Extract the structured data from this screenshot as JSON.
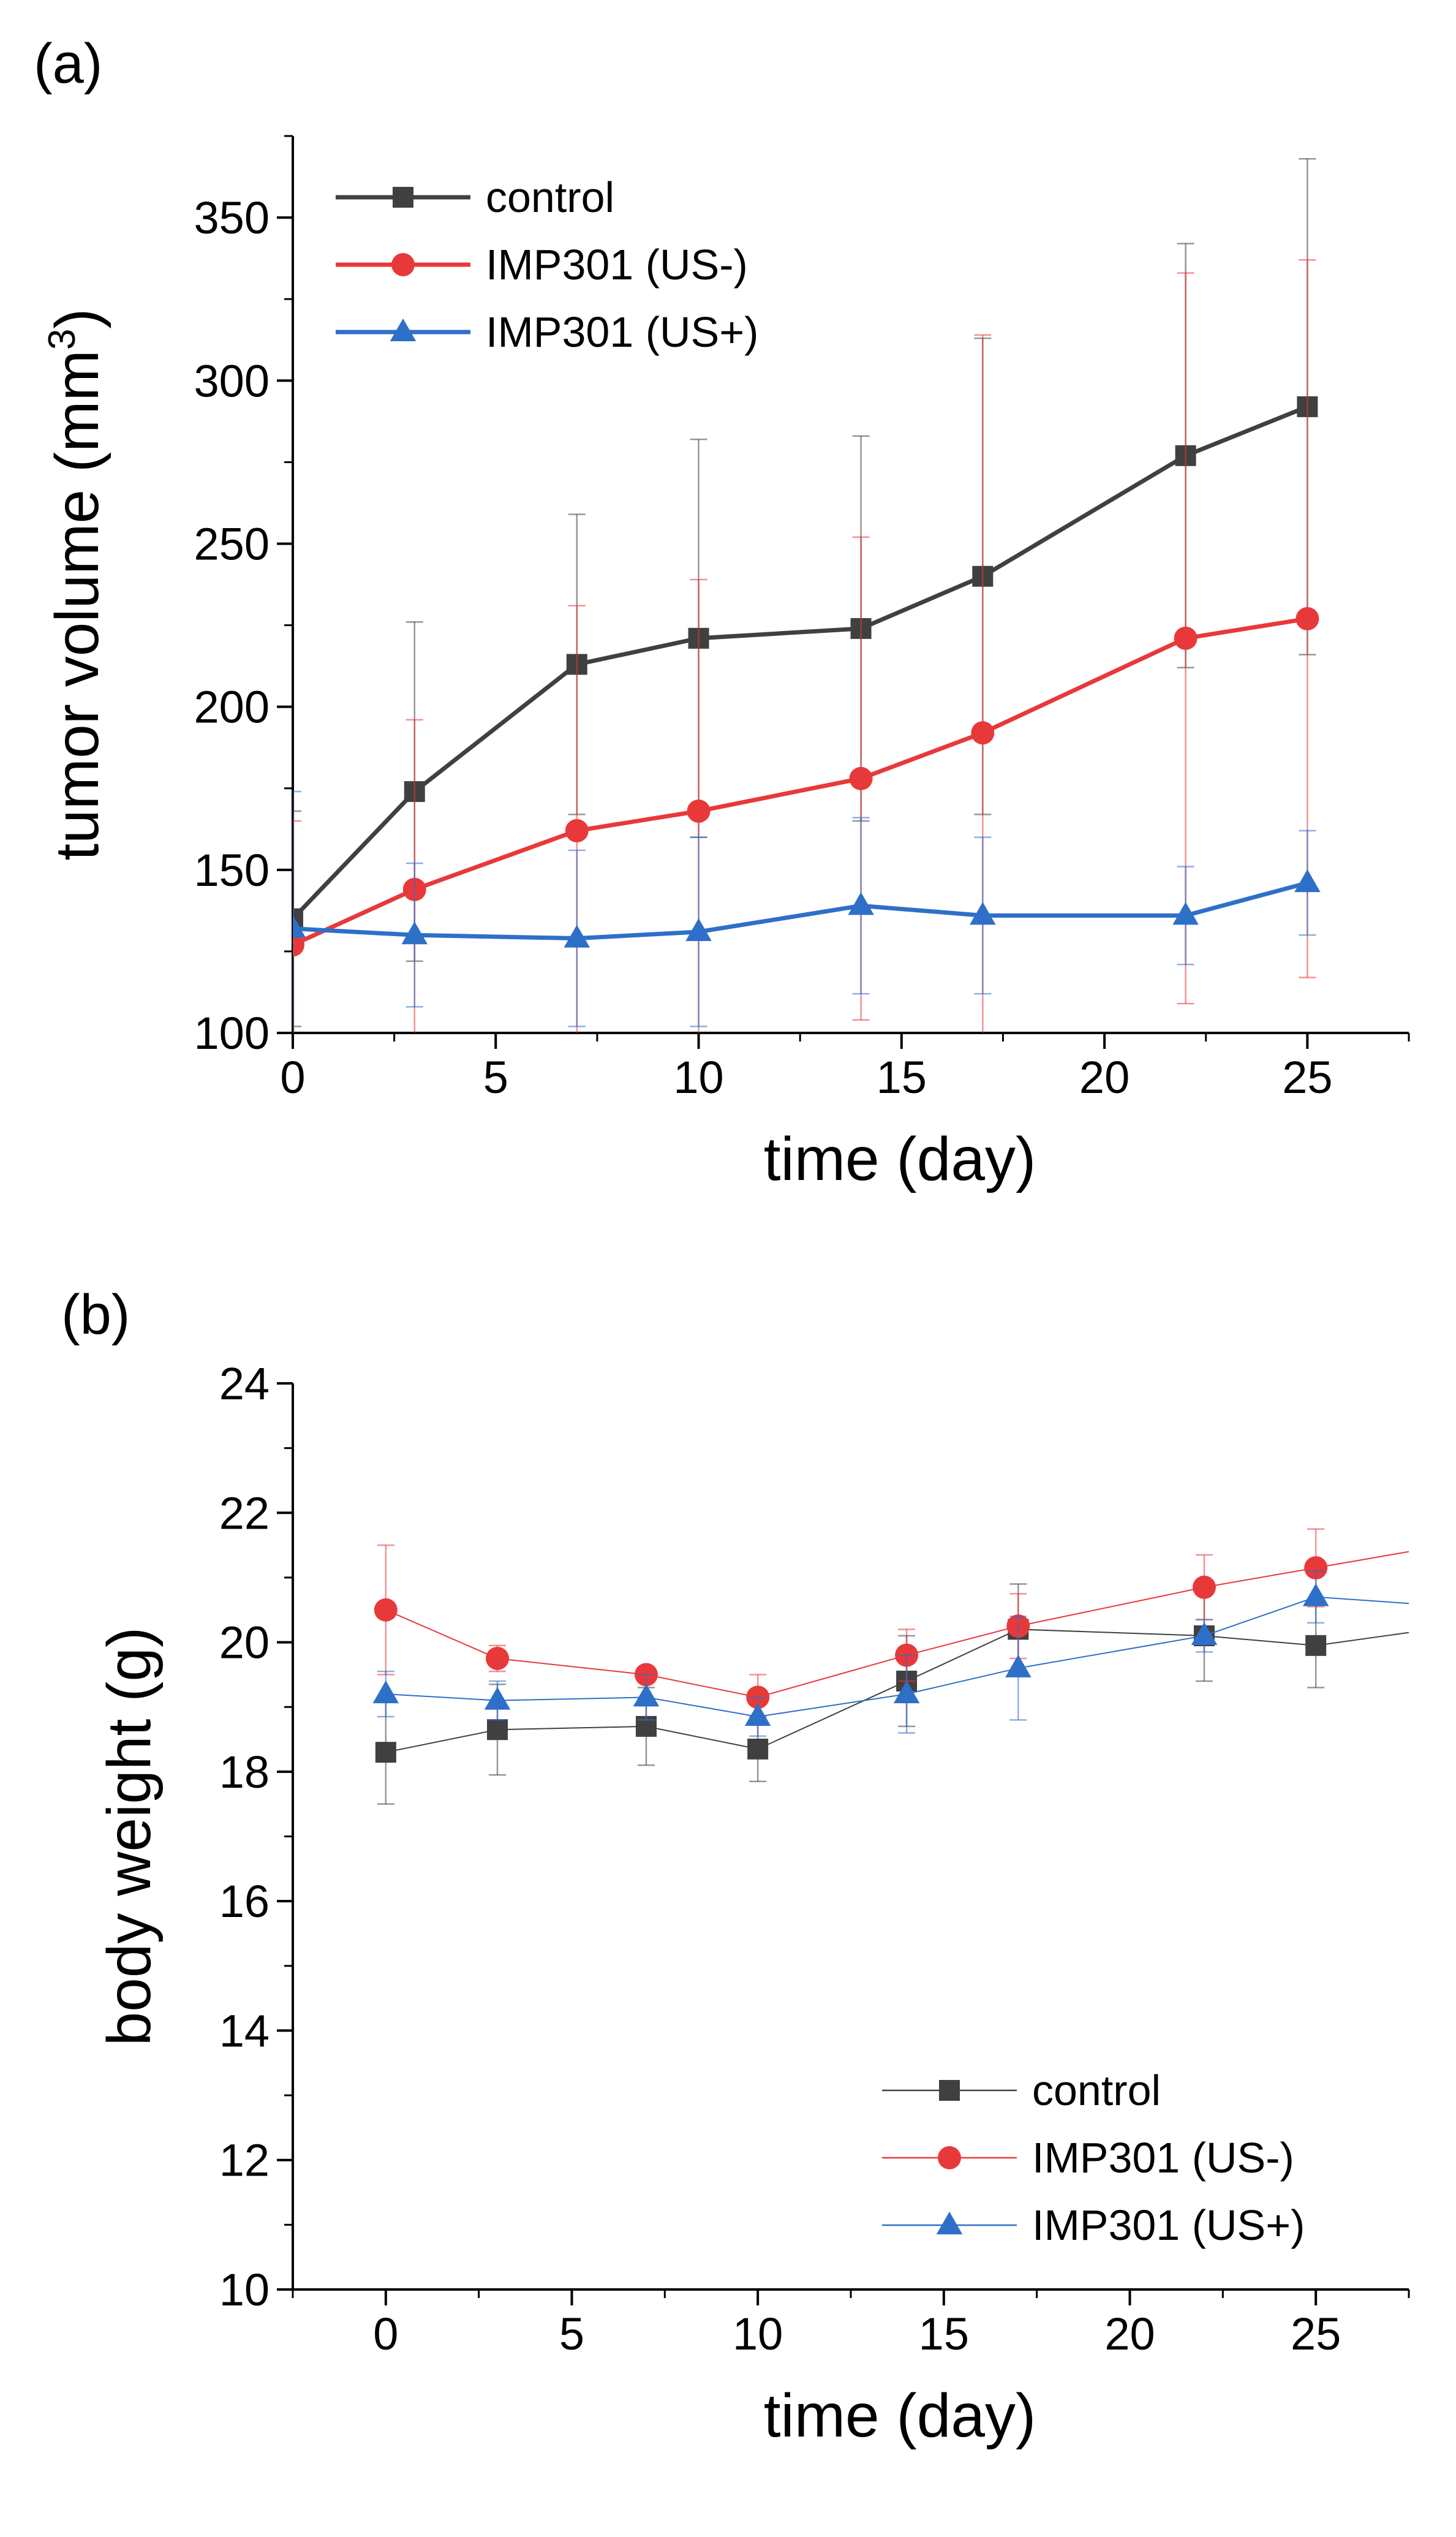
{
  "chart_data": [
    {
      "type": "line",
      "panel_label": "(a)",
      "xlabel": "time (day)",
      "ylabel": "tumor volume (mm",
      "ylabel_sup": "3",
      "ylabel_close": ")",
      "xlim": [
        0,
        27.5
      ],
      "ylim": [
        100,
        375
      ],
      "xticks": [
        0,
        5,
        10,
        15,
        20,
        25
      ],
      "yticks": [
        100,
        150,
        200,
        250,
        300,
        350
      ],
      "x_minor_step": 2.5,
      "y_minor_step": 25,
      "legend_position": "top-left",
      "series": [
        {
          "name": "control",
          "color": "#404040",
          "marker": "square",
          "x": [
            0,
            3,
            7,
            10,
            14,
            17,
            22,
            25
          ],
          "values": [
            135,
            174,
            213,
            221,
            224,
            240,
            277,
            292
          ],
          "error": [
            33,
            52,
            46,
            61,
            59,
            73,
            65,
            76
          ]
        },
        {
          "name": "IMP301 (US-)",
          "color": "#e8393a",
          "marker": "circle",
          "x": [
            0,
            3,
            7,
            10,
            14,
            17,
            22,
            25
          ],
          "values": [
            127,
            144,
            162,
            168,
            178,
            192,
            221,
            227
          ],
          "error": [
            38,
            52,
            69,
            71,
            74,
            122,
            112,
            110
          ]
        },
        {
          "name": "IMP301 (US+)",
          "color": "#2e6fc8",
          "marker": "triangle",
          "x": [
            0,
            3,
            7,
            10,
            14,
            17,
            22,
            25
          ],
          "values": [
            132,
            130,
            129,
            131,
            139,
            136,
            136,
            146
          ],
          "error": [
            42,
            22,
            27,
            29,
            27,
            24,
            15,
            16
          ]
        }
      ]
    },
    {
      "type": "line",
      "panel_label": "(b)",
      "xlabel": "time (day)",
      "ylabel": "body weight (g)",
      "xlim": [
        -2.5,
        27.5
      ],
      "ylim": [
        10,
        24
      ],
      "xticks": [
        0,
        5,
        10,
        15,
        20,
        25
      ],
      "yticks": [
        10,
        12,
        14,
        16,
        18,
        20,
        22,
        24
      ],
      "x_minor_step": 2.5,
      "y_minor_step": 1,
      "legend_position": "bottom-right",
      "series": [
        {
          "name": "control",
          "color": "#404040",
          "marker": "square",
          "x": [
            0,
            3,
            7,
            10,
            14,
            17,
            22,
            25,
            27.5
          ],
          "values": [
            18.3,
            18.65,
            18.7,
            18.35,
            19.4,
            20.2,
            20.1,
            19.95,
            20.15
          ],
          "error": [
            0.8,
            0.7,
            0.6,
            0.5,
            0.7,
            0.7,
            0.7,
            0.65,
            0
          ],
          "marker_mask": [
            true,
            true,
            true,
            true,
            true,
            true,
            true,
            true,
            false
          ]
        },
        {
          "name": "IMP301 (US-)",
          "color": "#e8393a",
          "marker": "circle",
          "x": [
            0,
            3,
            7,
            10,
            14,
            17,
            22,
            25,
            27.5
          ],
          "values": [
            20.5,
            19.75,
            19.5,
            19.15,
            19.8,
            20.25,
            20.85,
            21.15,
            21.4
          ],
          "error": [
            1.0,
            0.2,
            0.1,
            0.35,
            0.4,
            0.5,
            0.5,
            0.6,
            0
          ],
          "marker_mask": [
            true,
            true,
            true,
            true,
            true,
            true,
            true,
            true,
            false
          ]
        },
        {
          "name": "IMP301 (US+)",
          "color": "#2e6fc8",
          "marker": "triangle",
          "x": [
            0,
            3,
            7,
            10,
            14,
            17,
            22,
            25,
            27.5
          ],
          "values": [
            19.2,
            19.1,
            19.15,
            18.85,
            19.2,
            19.6,
            20.1,
            20.7,
            20.6
          ],
          "error": [
            0.35,
            0.3,
            0.35,
            0.3,
            0.6,
            0.8,
            0.25,
            0.4,
            0
          ],
          "marker_mask": [
            true,
            true,
            true,
            true,
            true,
            true,
            true,
            true,
            false
          ]
        }
      ]
    }
  ]
}
